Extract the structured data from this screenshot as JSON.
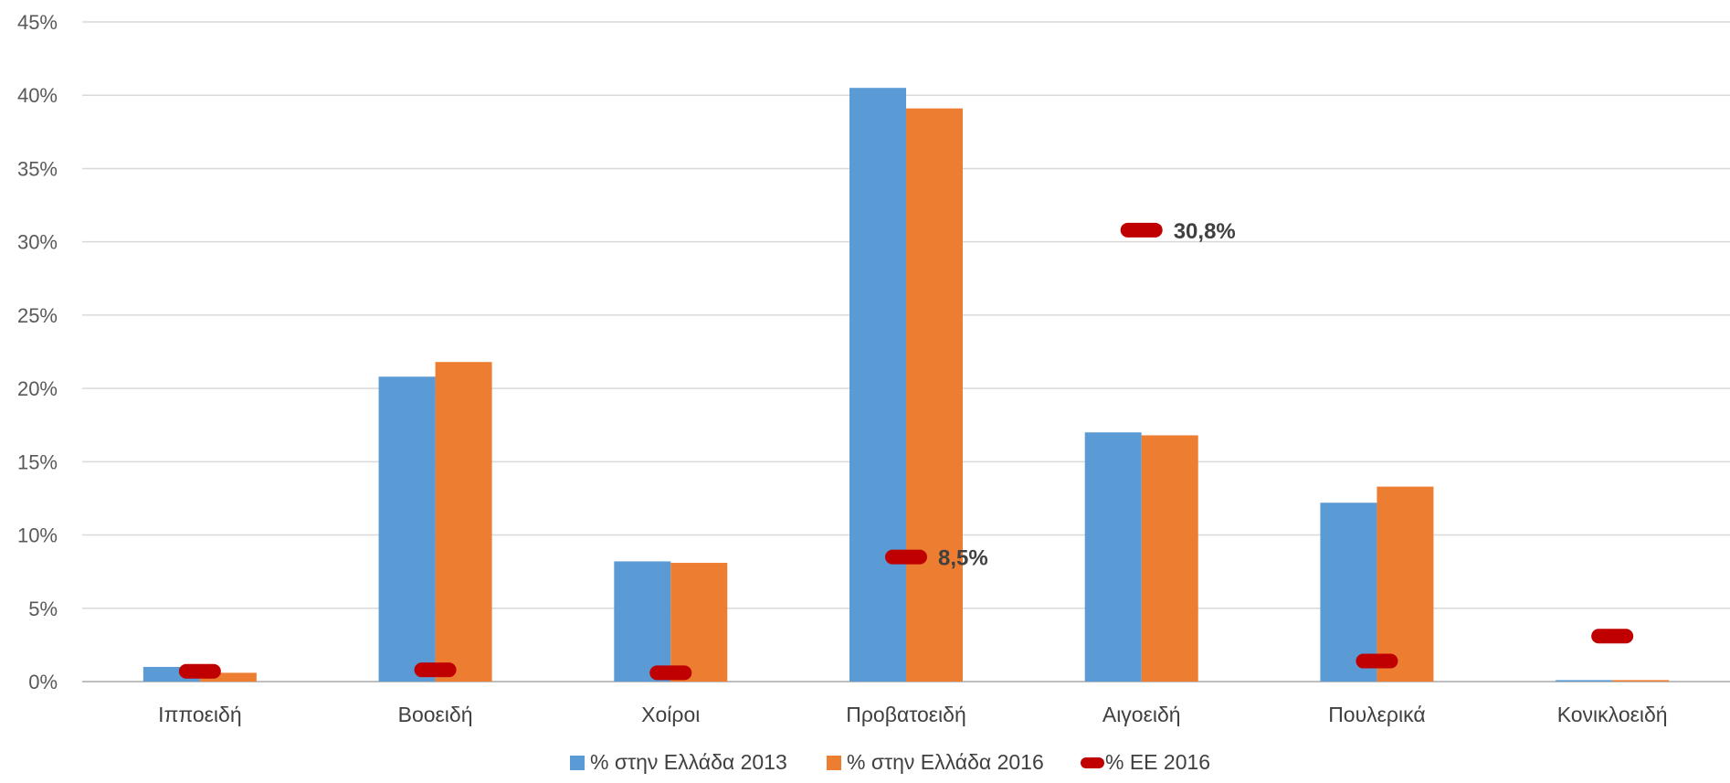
{
  "chart_data": {
    "type": "bar",
    "categories": [
      "Ιπποειδή",
      "Βοοειδή",
      "Χοίροι",
      "Προβατοειδή",
      "Αιγοειδή",
      "Πουλερικά",
      "Κονικλοειδή"
    ],
    "series": [
      {
        "name": "% στην Ελλάδα 2013",
        "kind": "bar",
        "color": "#5B9BD5",
        "values": [
          1.0,
          20.8,
          8.2,
          40.5,
          17.0,
          12.2,
          0.1
        ]
      },
      {
        "name": "% στην Ελλάδα 2016",
        "kind": "bar",
        "color": "#ED7D31",
        "values": [
          0.6,
          21.8,
          8.1,
          39.1,
          16.8,
          13.3,
          0.1
        ]
      },
      {
        "name": "% ΕΕ 2016",
        "kind": "marker",
        "color": "#C00000",
        "values": [
          0.7,
          0.8,
          0.6,
          8.5,
          30.8,
          1.4,
          3.1
        ]
      }
    ],
    "data_labels": [
      {
        "series": 2,
        "category": 3,
        "text": "8,5%"
      },
      {
        "series": 2,
        "category": 4,
        "text": "30,8%"
      }
    ],
    "y_ticks": [
      "0%",
      "5%",
      "10%",
      "15%",
      "20%",
      "25%",
      "30%",
      "35%",
      "40%",
      "45%"
    ],
    "ylim": [
      0,
      45
    ],
    "grid": true,
    "legend_position": "bottom"
  }
}
